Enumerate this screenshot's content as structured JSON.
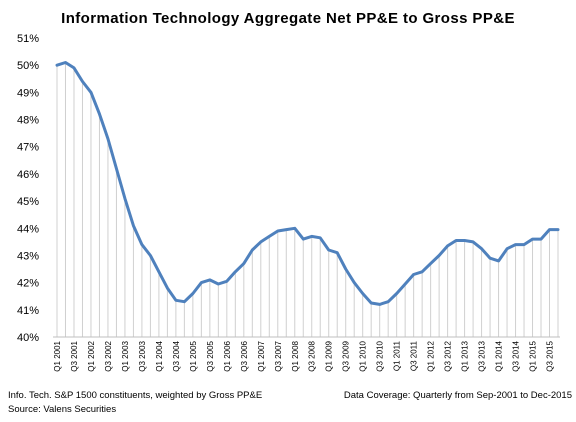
{
  "chart_data": {
    "type": "line",
    "title": "Information Technology Aggregate Net PP&E to Gross PP&E",
    "xlabel": "",
    "ylabel": "",
    "ylim": [
      40,
      51
    ],
    "y_ticks": [
      "40%",
      "41%",
      "42%",
      "43%",
      "44%",
      "45%",
      "46%",
      "47%",
      "48%",
      "49%",
      "50%",
      "51%"
    ],
    "x_tick_labels": [
      "Q1 2001",
      "Q3 2001",
      "Q1 2002",
      "Q3 2002",
      "Q1 2003",
      "Q3 2003",
      "Q1 2004",
      "Q3 2004",
      "Q1 2005",
      "Q3 2005",
      "Q1 2006",
      "Q3 2006",
      "Q1 2007",
      "Q3 2007",
      "Q1 2008",
      "Q3 2008",
      "Q1 2009",
      "Q3 2009",
      "Q1 2010",
      "Q3 2010",
      "Q1 2011",
      "Q3 2011",
      "Q1 2012",
      "Q3 2012",
      "Q1 2013",
      "Q3 2013",
      "Q1 2014",
      "Q3 2014",
      "Q1 2015",
      "Q3 2015"
    ],
    "series": [
      {
        "color": "#4f81bd",
        "values": [
          50.0,
          50.1,
          49.9,
          49.4,
          49.0,
          48.2,
          47.3,
          46.2,
          45.1,
          44.1,
          43.4,
          43.0,
          42.4,
          41.8,
          41.35,
          41.3,
          41.6,
          42.0,
          42.1,
          41.95,
          42.05,
          42.4,
          42.7,
          43.2,
          43.5,
          43.7,
          43.9,
          43.95,
          44.0,
          43.6,
          43.7,
          43.65,
          43.2,
          43.1,
          42.5,
          42.0,
          41.6,
          41.25,
          41.2,
          41.3,
          41.6,
          41.95,
          42.3,
          42.4,
          42.7,
          43.0,
          43.35,
          43.55,
          43.55,
          43.5,
          43.25,
          42.9,
          42.8,
          43.25,
          43.4,
          43.4,
          43.6,
          43.6,
          43.95,
          43.95
        ]
      }
    ],
    "grid": false,
    "fill": "vertical drop lines under line"
  },
  "footer": {
    "note": "Info. Tech. S&P 1500 constituents, weighted by Gross PP&E",
    "source": "Source: Valens Securities",
    "coverage": "Data Coverage: Quarterly from Sep-2001 to Dec-2015"
  }
}
